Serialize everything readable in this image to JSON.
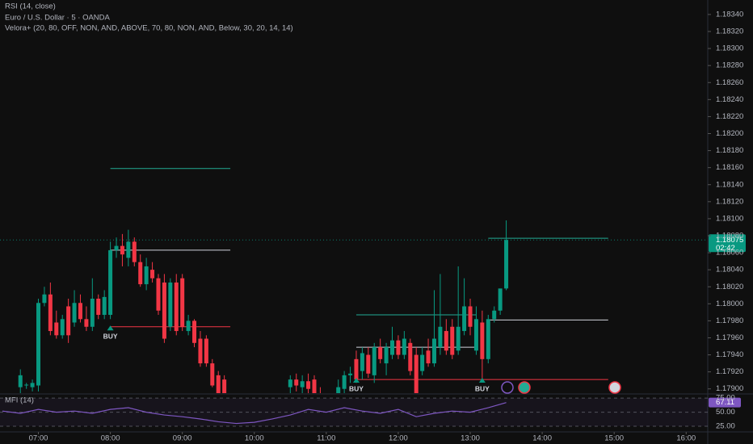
{
  "chart_data": [
    {
      "type": "candlestick",
      "overlay_title": "RSI (14, close)",
      "title": "Euro / U.S. Dollar · 5 · OANDA",
      "indicator": "Velora+ (20, 80, OFF, NON, AND, ABOVE, 70, 80, NON, AND, Below, 30, 20, 14, 14)",
      "up_color": "#089981",
      "down_color": "#f23645",
      "x": [
        "06:45",
        "06:50",
        "06:55",
        "07:00",
        "07:05",
        "07:10",
        "07:15",
        "07:20",
        "07:25",
        "07:30",
        "07:35",
        "07:40",
        "07:45",
        "07:50",
        "07:55",
        "08:00",
        "08:05",
        "08:10",
        "08:15",
        "08:20",
        "08:25",
        "08:30",
        "08:35",
        "08:40",
        "08:45",
        "08:50",
        "08:55",
        "09:00",
        "09:05",
        "09:10",
        "09:15",
        "09:20",
        "09:25",
        "09:30",
        "09:35",
        "10:30",
        "10:35",
        "10:40",
        "10:45",
        "10:50",
        "10:55",
        "11:10",
        "11:15",
        "11:20",
        "11:25",
        "11:30",
        "11:35",
        "11:40",
        "11:45",
        "11:50",
        "11:55",
        "12:00",
        "12:05",
        "12:10",
        "12:15",
        "12:20",
        "12:25",
        "12:30",
        "12:35",
        "12:40",
        "12:45",
        "12:50",
        "12:55",
        "13:00",
        "13:05",
        "13:10",
        "13:15",
        "13:20",
        "13:25",
        "13:30"
      ],
      "open": [
        1.17902,
        1.17904,
        1.17902,
        1.17904,
        1.18001,
        1.18011,
        1.17978,
        1.17963,
        1.17997,
        1.17978,
        1.18001,
        1.17982,
        1.17973,
        1.18006,
        1.17987,
        1.17987,
        1.18063,
        1.18068,
        1.18054,
        1.18073,
        1.18049,
        1.18023,
        1.1804,
        1.1803,
        1.18025,
        1.17973,
        1.18025,
        1.1803,
        1.17968,
        1.1798,
        1.17959,
        1.17959,
        1.1793,
        1.17916,
        1.17911,
        1.17902,
        1.17911,
        1.17902,
        1.17909,
        1.17911,
        1.17894,
        1.17892,
        1.179,
        1.17916,
        1.17935,
        1.17921,
        1.1794,
        1.17916,
        1.17949,
        1.1793,
        1.1794,
        1.17957,
        1.1794,
        1.17954,
        1.1794,
        1.17921,
        1.17945,
        1.1793,
        1.17949,
        1.17968,
        1.17973,
        1.17945,
        1.17968,
        1.17997,
        1.17945,
        1.17978,
        1.17935,
        1.17982,
        1.17992,
        1.18018
      ],
      "high": [
        1.17923,
        1.17907,
        1.17911,
        1.18006,
        1.1802,
        1.18025,
        1.17992,
        1.17987,
        1.18006,
        1.18016,
        1.18011,
        1.17997,
        1.1803,
        1.18011,
        1.18016,
        1.18073,
        1.18078,
        1.18082,
        1.18087,
        1.18078,
        1.18058,
        1.18054,
        1.18049,
        1.18035,
        1.18035,
        1.1803,
        1.18035,
        1.18035,
        1.17987,
        1.17982,
        1.17968,
        1.17963,
        1.17935,
        1.17921,
        1.17916,
        1.17916,
        1.17918,
        1.17916,
        1.17918,
        1.17916,
        1.17902,
        1.17911,
        1.17921,
        1.17926,
        1.17945,
        1.17949,
        1.17949,
        1.17954,
        1.17959,
        1.17954,
        1.17973,
        1.17963,
        1.17968,
        1.17959,
        1.17949,
        1.17949,
        1.17959,
        1.18016,
        1.18035,
        1.17982,
        1.17982,
        1.18044,
        1.1803,
        1.18006,
        1.17997,
        1.17992,
        1.17987,
        1.17997,
        1.18016,
        1.18098
      ],
      "low": [
        1.17892,
        1.179,
        1.17897,
        1.17897,
        1.17997,
        1.17963,
        1.17959,
        1.17959,
        1.17954,
        1.17973,
        1.17978,
        1.17968,
        1.17968,
        1.17982,
        1.17982,
        1.17982,
        1.18054,
        1.18044,
        1.18044,
        1.18044,
        1.1802,
        1.18016,
        1.18025,
        1.17987,
        1.17954,
        1.17968,
        1.17963,
        1.17968,
        1.17963,
        1.17949,
        1.17926,
        1.17926,
        1.17902,
        1.17883,
        1.17883,
        1.17892,
        1.17897,
        1.17892,
        1.17892,
        1.17887,
        1.17887,
        1.17887,
        1.17892,
        1.17907,
        1.17907,
        1.17911,
        1.17913,
        1.17907,
        1.1793,
        1.17916,
        1.17935,
        1.17935,
        1.17935,
        1.17916,
        1.17887,
        1.17916,
        1.17926,
        1.17926,
        1.1794,
        1.1794,
        1.17935,
        1.1794,
        1.17963,
        1.17963,
        1.1794,
        1.17911,
        1.1793,
        1.17978,
        1.17987,
        1.18016
      ],
      "close": [
        1.17916,
        1.17905,
        1.17907,
        1.18001,
        1.18011,
        1.17968,
        1.17963,
        1.17982,
        1.17963,
        1.18001,
        1.17982,
        1.17973,
        1.18006,
        1.17987,
        1.18008,
        1.18063,
        1.18068,
        1.18058,
        1.18073,
        1.18049,
        1.18023,
        1.18044,
        1.1803,
        1.17992,
        1.17959,
        1.18025,
        1.17968,
        1.17973,
        1.1798,
        1.17954,
        1.1793,
        1.1793,
        1.17904,
        1.17887,
        1.17887,
        1.17911,
        1.17904,
        1.17909,
        1.179,
        1.17892,
        1.17892,
        1.17902,
        1.17916,
        1.17918,
        1.17911,
        1.17942,
        1.17918,
        1.17949,
        1.17935,
        1.17949,
        1.17957,
        1.1794,
        1.17959,
        1.17921,
        1.17892,
        1.1794,
        1.1793,
        1.17959,
        1.17973,
        1.17945,
        1.1794,
        1.17973,
        1.17997,
        1.17973,
        1.17982,
        1.17935,
        1.17982,
        1.17992,
        1.18018,
        1.18075
      ],
      "xlim": [
        "06:28",
        "16:18"
      ],
      "xticks": [
        "07:00",
        "08:00",
        "09:00",
        "10:00",
        "11:00",
        "12:00",
        "13:00",
        "14:00",
        "15:00",
        "16:00"
      ],
      "ylim": [
        1.17895,
        1.18357
      ],
      "yticks": [
        {
          "value": 1.179,
          "label": "1.17900"
        },
        {
          "value": 1.1792,
          "label": "1.17920"
        },
        {
          "value": 1.1794,
          "label": "1.17940"
        },
        {
          "value": 1.1796,
          "label": "1.17960"
        },
        {
          "value": 1.1798,
          "label": "1.17980"
        },
        {
          "value": 1.18,
          "label": "1.18000"
        },
        {
          "value": 1.1802,
          "label": "1.18020"
        },
        {
          "value": 1.1804,
          "label": "1.18040"
        },
        {
          "value": 1.1806,
          "label": "1.18060"
        },
        {
          "value": 1.1808,
          "label": "1.18080"
        },
        {
          "value": 1.181,
          "label": "1.18100"
        },
        {
          "value": 1.1812,
          "label": "1.18120"
        },
        {
          "value": 1.1814,
          "label": "1.18140"
        },
        {
          "value": 1.1816,
          "label": "1.18160"
        },
        {
          "value": 1.1818,
          "label": "1.18180"
        },
        {
          "value": 1.182,
          "label": "1.18200"
        },
        {
          "value": 1.1822,
          "label": "1.18220"
        },
        {
          "value": 1.1824,
          "label": "1.18240"
        },
        {
          "value": 1.1826,
          "label": "1.18260"
        },
        {
          "value": 1.1828,
          "label": "1.18280"
        },
        {
          "value": 1.183,
          "label": "1.18300"
        },
        {
          "value": 1.1832,
          "label": "1.18320"
        },
        {
          "value": 1.1834,
          "label": "1.18340"
        }
      ],
      "last_value": 1.18075,
      "last_value_label": "1.18075",
      "countdown": "02:42",
      "levels": [
        {
          "x_start": "08:00",
          "x_end": "09:40",
          "value": 1.18159,
          "color": "#22ab94"
        },
        {
          "x_start": "08:00",
          "x_end": "09:40",
          "value": 1.18063,
          "color": "#d1d4dc"
        },
        {
          "x_start": "08:00",
          "x_end": "09:40",
          "value": 1.17973,
          "color": "#f23645"
        },
        {
          "x_start": "11:25",
          "x_end": "13:05",
          "value": 1.17987,
          "color": "#22ab94"
        },
        {
          "x_start": "11:25",
          "x_end": "13:05",
          "value": 1.17949,
          "color": "#d1d4dc"
        },
        {
          "x_start": "11:25",
          "x_end": "14:55",
          "value": 1.17911,
          "color": "#f23645"
        },
        {
          "x_start": "13:15",
          "x_end": "14:55",
          "value": 1.18077,
          "color": "#22ab94"
        },
        {
          "x_start": "13:15",
          "x_end": "14:55",
          "value": 1.17981,
          "color": "#d1d4dc"
        }
      ],
      "signals": [
        {
          "x": "08:00",
          "label": "BUY"
        },
        {
          "x": "11:25",
          "label": "BUY"
        },
        {
          "x": "13:10",
          "label": "BUY"
        }
      ]
    },
    {
      "type": "line",
      "title": "MFI (14)",
      "color": "#7e57c2",
      "x": [
        "06:30",
        "06:45",
        "07:00",
        "07:15",
        "07:30",
        "07:45",
        "08:00",
        "08:15",
        "08:30",
        "08:45",
        "09:00",
        "09:15",
        "09:30",
        "09:45",
        "10:00",
        "10:15",
        "10:30",
        "10:45",
        "11:00",
        "11:15",
        "11:30",
        "11:45",
        "12:00",
        "12:15",
        "12:30",
        "12:45",
        "13:00",
        "13:15",
        "13:30"
      ],
      "values": [
        52,
        48,
        55,
        50,
        52,
        48,
        55,
        58,
        50,
        45,
        42,
        38,
        33,
        30,
        32,
        38,
        45,
        55,
        50,
        58,
        52,
        48,
        55,
        42,
        48,
        52,
        50,
        58,
        67.11
      ],
      "ylim": [
        15,
        81
      ],
      "yticks": [
        {
          "value": 25,
          "label": "25.00"
        },
        {
          "value": 50,
          "label": "50.00"
        },
        {
          "value": 75,
          "label": "75.00"
        }
      ],
      "last_value": 67.11
    }
  ]
}
